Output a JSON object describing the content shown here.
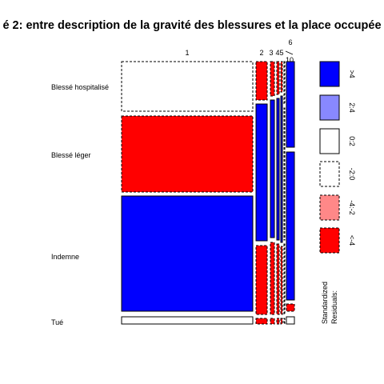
{
  "chart_data": {
    "type": "mosaic",
    "title": "é 2: entre description de la gravité des blessures et la place occupée",
    "columns": [
      "1",
      "2",
      "3",
      "4",
      "5",
      "6",
      "10"
    ],
    "rows": [
      "Blessé hospitalisé",
      "Blessé léger",
      "Indemne",
      "Tué"
    ],
    "cells": [
      {
        "col": "1",
        "row": "Blessé hospitalisé",
        "fill": "white",
        "dashed": true
      },
      {
        "col": "1",
        "row": "Blessé léger",
        "fill": "red",
        "dashed": true
      },
      {
        "col": "1",
        "row": "Indemne",
        "fill": "blue",
        "dashed": false
      },
      {
        "col": "1",
        "row": "Tué",
        "fill": "white",
        "dashed": false
      },
      {
        "col": "2",
        "row": "Blessé hospitalisé",
        "fill": "red",
        "dashed": true
      },
      {
        "col": "2",
        "row": "Blessé léger",
        "fill": "blue",
        "dashed": false
      },
      {
        "col": "2",
        "row": "Indemne",
        "fill": "red",
        "dashed": true
      },
      {
        "col": "2",
        "row": "Tué",
        "fill": "red",
        "dashed": true
      },
      {
        "col": "3",
        "row": "Blessé hospitalisé",
        "fill": "red",
        "dashed": true
      },
      {
        "col": "3",
        "row": "Blessé léger",
        "fill": "blue",
        "dashed": false
      },
      {
        "col": "3",
        "row": "Indemne",
        "fill": "red",
        "dashed": true
      },
      {
        "col": "3",
        "row": "Tué",
        "fill": "red",
        "dashed": true
      },
      {
        "col": "4",
        "row": "Blessé hospitalisé",
        "fill": "red",
        "dashed": true
      },
      {
        "col": "4",
        "row": "Blessé léger",
        "fill": "blue",
        "dashed": false
      },
      {
        "col": "4",
        "row": "Indemne",
        "fill": "red",
        "dashed": true
      },
      {
        "col": "4",
        "row": "Tué",
        "fill": "red",
        "dashed": true
      },
      {
        "col": "5",
        "row": "Blessé hospitalisé",
        "fill": "red",
        "dashed": true
      },
      {
        "col": "5",
        "row": "Blessé léger",
        "fill": "blue",
        "dashed": false
      },
      {
        "col": "5",
        "row": "Indemne",
        "fill": "red",
        "dashed": true
      },
      {
        "col": "5",
        "row": "Tué",
        "fill": "red",
        "dashed": true
      },
      {
        "col": "6",
        "row": "Blessé hospitalisé",
        "fill": "white",
        "dashed": true
      },
      {
        "col": "6",
        "row": "Blessé léger",
        "fill": "white",
        "dashed": true
      },
      {
        "col": "6",
        "row": "Indemne",
        "fill": "white",
        "dashed": true
      },
      {
        "col": "6",
        "row": "Tué",
        "fill": "white",
        "dashed": true
      },
      {
        "col": "10",
        "row": "Blessé hospitalisé",
        "fill": "blue",
        "dashed": false
      },
      {
        "col": "10",
        "row": "Blessé léger",
        "fill": "blue",
        "dashed": false
      },
      {
        "col": "10",
        "row": "Indemne",
        "fill": "red",
        "dashed": true
      },
      {
        "col": "10",
        "row": "Tué",
        "fill": "white",
        "dashed": false
      }
    ],
    "legend": {
      "title": "Standardized\nResiduals:",
      "entries": [
        {
          "label": ">4",
          "fill": "#0000ff",
          "dashed": false
        },
        {
          "label": "2:4",
          "fill": "#8888ff",
          "dashed": false
        },
        {
          "label": "0:2",
          "fill": "#ffffff",
          "dashed": false
        },
        {
          "label": "-2:0",
          "fill": "#ffffff",
          "dashed": true
        },
        {
          "label": "-4:-2",
          "fill": "#ff8888",
          "dashed": true
        },
        {
          "label": "<-4",
          "fill": "#ff0000",
          "dashed": true
        }
      ]
    },
    "colors": {
      "blue": "#0000ff",
      "red": "#ff0000",
      "white": "#ffffff"
    }
  }
}
